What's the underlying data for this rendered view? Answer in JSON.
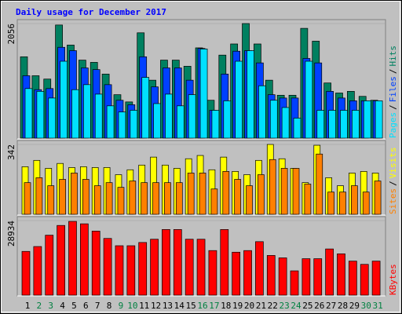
{
  "chart_data": [
    {
      "type": "bar",
      "title": "Daily usage for December 2017",
      "ylim": [
        0,
        2056
      ],
      "yticks": [
        2056
      ],
      "legend_separator": "/",
      "series": [
        {
          "name": "Hits",
          "color": "#008060",
          "values": [
            1460,
            1120,
            1060,
            2030,
            1670,
            1400,
            1360,
            1150,
            780,
            650,
            1890,
            1040,
            1400,
            1400,
            1290,
            1620,
            680,
            1490,
            1690,
            2056,
            1690,
            1040,
            770,
            770,
            1970,
            1740,
            990,
            810,
            840,
            750,
            680
          ]
        },
        {
          "name": "Files",
          "color": "#0040ff",
          "values": [
            1120,
            870,
            890,
            1630,
            1570,
            1260,
            1230,
            960,
            680,
            600,
            1460,
            920,
            1260,
            1260,
            1040,
            1610,
            500,
            1150,
            1560,
            1570,
            1350,
            780,
            720,
            720,
            1430,
            1350,
            840,
            720,
            670,
            670,
            670
          ]
        },
        {
          "name": "Pages",
          "color": "#00e0ff",
          "values": [
            890,
            840,
            720,
            1380,
            870,
            960,
            790,
            580,
            470,
            500,
            1090,
            620,
            790,
            580,
            780,
            1600,
            500,
            670,
            1380,
            1570,
            940,
            680,
            550,
            360,
            1380,
            500,
            500,
            500,
            500,
            670,
            670
          ]
        }
      ]
    },
    {
      "type": "bar",
      "ylim": [
        0,
        342
      ],
      "yticks": [
        342
      ],
      "legend_separator": "/",
      "series": [
        {
          "name": "Visits",
          "color": "#ffff00",
          "values": [
            233,
            264,
            225,
            249,
            229,
            233,
            229,
            229,
            194,
            218,
            241,
            280,
            241,
            225,
            272,
            288,
            218,
            280,
            210,
            194,
            264,
            342,
            272,
            225,
            155,
            338,
            179,
            140,
            202,
            210,
            202
          ]
        },
        {
          "name": "Sites",
          "color": "#ff8000",
          "values": [
            155,
            179,
            140,
            171,
            202,
            171,
            140,
            155,
            132,
            163,
            155,
            155,
            155,
            155,
            202,
            202,
            124,
            210,
            171,
            140,
            194,
            268,
            225,
            225,
            148,
            295,
            109,
            109,
            140,
            109,
            163
          ]
        }
      ]
    },
    {
      "type": "bar",
      "ylim": [
        0,
        28934
      ],
      "yticks": [
        28934
      ],
      "categories": [
        "1",
        "2",
        "3",
        "4",
        "5",
        "6",
        "7",
        "8",
        "9",
        "10",
        "11",
        "12",
        "13",
        "14",
        "15",
        "16",
        "17",
        "18",
        "19",
        "20",
        "21",
        "22",
        "23",
        "24",
        "25",
        "26",
        "27",
        "28",
        "29",
        "30",
        "31"
      ],
      "category_colors": [
        "#000000",
        "#008040",
        "#008040",
        "#000000",
        "#000000",
        "#000000",
        "#000000",
        "#000000",
        "#008040",
        "#008040",
        "#000000",
        "#000000",
        "#000000",
        "#000000",
        "#000000",
        "#008040",
        "#008040",
        "#000000",
        "#000000",
        "#000000",
        "#000000",
        "#000000",
        "#008040",
        "#008040",
        "#000000",
        "#000000",
        "#000000",
        "#000000",
        "#000000",
        "#008040",
        "#008040"
      ],
      "series": [
        {
          "name": "KBytes",
          "color": "#ff0000",
          "values": [
            16980,
            18870,
            23270,
            27050,
            28620,
            27680,
            24850,
            22010,
            19180,
            19180,
            20440,
            21700,
            25470,
            25470,
            21700,
            21700,
            17300,
            25470,
            16670,
            17300,
            20760,
            15410,
            14470,
            9430,
            14150,
            14150,
            17930,
            16040,
            13210,
            11950,
            13210
          ]
        }
      ]
    }
  ]
}
